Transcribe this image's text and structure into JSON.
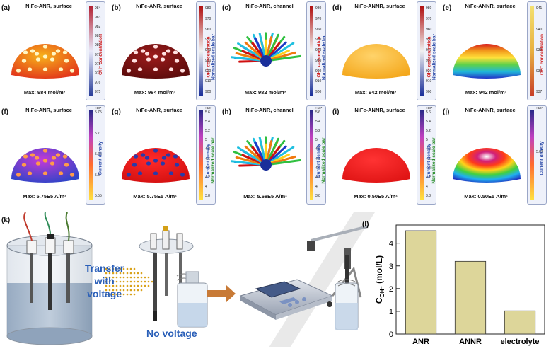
{
  "panels_row1": [
    {
      "label": "(a)",
      "title": "NiFe-ANR, surface",
      "max": "Max: 984 mol/m³",
      "bar_title": "OH⁻ concentration",
      "bar_sub": "",
      "mult": "",
      "ticks": [
        "984",
        "983",
        "982",
        "981",
        "980",
        "979",
        "978",
        "977",
        "976",
        "975"
      ]
    },
    {
      "label": "(b)",
      "title": "NiFe-ANR, surface",
      "max": "Max: 984 mol/m³",
      "bar_title": "OH⁻ concentration",
      "bar_sub": "Normalized scale bar",
      "mult": "",
      "ticks": [
        "980",
        "970",
        "960",
        "950",
        "940",
        "930",
        "920",
        "910",
        "900"
      ]
    },
    {
      "label": "(c)",
      "title": "NiFe-ANR, channel",
      "max": "Max: 982 mol/m³",
      "bar_title": "OH⁻ concentration",
      "bar_sub": "Normalized scale bar",
      "mult": "",
      "ticks": [
        "980",
        "970",
        "960",
        "950",
        "940",
        "930",
        "920",
        "910",
        "900"
      ]
    },
    {
      "label": "(d)",
      "title": "NiFe-ANNR, surface",
      "max": "Max: 942 mol/m³",
      "bar_title": "OH⁻ concentration",
      "bar_sub": "Normalized scale bar",
      "mult": "",
      "ticks": [
        "980",
        "970",
        "960",
        "950",
        "940",
        "930",
        "920",
        "910",
        "900"
      ]
    },
    {
      "label": "(e)",
      "title": "NiFe-ANNR, surface",
      "max": "Max: 942 mol/m³",
      "bar_title": "OH⁻ concentration",
      "bar_sub": "",
      "mult": "",
      "ticks": [
        "941",
        "940",
        "939",
        "938",
        "937"
      ]
    }
  ],
  "panels_row2": [
    {
      "label": "(f)",
      "title": "NiFe-ANR, surface",
      "max": "Max: 5.75E5 A/m²",
      "bar_title": "Current density",
      "bar_sub": "",
      "mult": "×10⁵",
      "ticks": [
        "5.75",
        "5.7",
        "5.65",
        "5.6",
        "5.55"
      ]
    },
    {
      "label": "(g)",
      "title": "NiFe-ANR, surface",
      "max": "Max: 5.75E5 A/m²",
      "bar_title": "Current density",
      "bar_sub": "Normalized scale bar",
      "mult": "×10⁵",
      "ticks": [
        "5.6",
        "5.4",
        "5.2",
        "5",
        "4.8",
        "4.6",
        "4.4",
        "4.2",
        "4",
        "3.8"
      ]
    },
    {
      "label": "(h)",
      "title": "NiFe-ANR, channel",
      "max": "Max: 5.68E5 A/m²",
      "bar_title": "Current density",
      "bar_sub": "Normalized scale bar",
      "mult": "×10⁵",
      "ticks": [
        "5.6",
        "5.4",
        "5.2",
        "5",
        "4.8",
        "4.6",
        "4.4",
        "4.2",
        "4",
        "3.8"
      ]
    },
    {
      "label": "(i)",
      "title": "NiFe-ANNR, surface",
      "max": "Max: 0.50E5 A/m²",
      "bar_title": "Current density",
      "bar_sub": "Normalized scale bar",
      "mult": "×10⁵",
      "ticks": [
        "5.6",
        "5.4",
        "5.2",
        "5",
        "4.8",
        "4.6",
        "4.4",
        "4.2",
        "4",
        "3.8"
      ]
    },
    {
      "label": "(j)",
      "title": "NiFe-ANNR, surface",
      "max": "Max: 0.50E5 A/m²",
      "bar_title": "Current density",
      "bar_sub": "",
      "mult": "×10⁴",
      "ticks": [
        "5.02"
      ]
    }
  ],
  "panel_k": {
    "label": "(k)",
    "transfer_text": [
      "Transfer",
      "with",
      "voltage"
    ],
    "no_voltage": "No voltage"
  },
  "chart_data": {
    "label": "(l)",
    "type": "bar",
    "categories": [
      "ANR",
      "ANNR",
      "electrolyte"
    ],
    "values": [
      4.55,
      3.2,
      1.02
    ],
    "ylabel": "C_OH⁻ (mol/L)",
    "ylabel_main": "C",
    "ylabel_sub": "OH⁻",
    "ylabel_rest": " (mol/L)",
    "ylim": [
      0,
      4.8
    ],
    "yticks": [
      "0",
      "1",
      "2",
      "3",
      "4"
    ],
    "bar_color": "#ddd69a"
  }
}
